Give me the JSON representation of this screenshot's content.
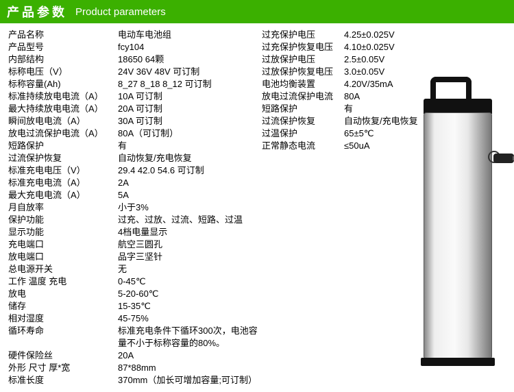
{
  "header": {
    "cn": "产品参数",
    "en": "Product parameters"
  },
  "left": [
    {
      "label": "产品名称",
      "value": "电动车电池组"
    },
    {
      "label": "产品型号",
      "value": "fcy104"
    },
    {
      "label": "内部结构",
      "value": "18650  64颗"
    },
    {
      "label": "标称电压（V）",
      "value": "24V  36V  48V  可订制"
    },
    {
      "label": "标称容量(Ah)",
      "value": "8_27 8_18 8_12 可订制"
    },
    {
      "label": "标准持续放电电流（A）",
      "value": "10A  可订制"
    },
    {
      "label": "最大持续放电电流（A）",
      "value": "20A  可订制"
    },
    {
      "label": "瞬间放电电流（A）",
      "value": "30A  可订制"
    },
    {
      "label": "放电过流保护电流（A）",
      "value": "80A（可订制）"
    },
    {
      "label": "短路保护",
      "value": "有"
    },
    {
      "label": "过流保护恢复",
      "value": "自动恢复/充电恢复"
    },
    {
      "label": "标准充电电压（V）",
      "value": "29.4  42.0  54.6  可订制"
    },
    {
      "label": "标准充电电流（A）",
      "value": "2A"
    },
    {
      "label": "最大充电电流（A）",
      "value": "5A"
    },
    {
      "label": "月自放率",
      "value": "小于3%"
    },
    {
      "label": "保护功能",
      "value": "过充、过放、过流、短路、过温"
    },
    {
      "label": "显示功能",
      "value": "4档电量显示"
    },
    {
      "label": "充电端口",
      "value": "航空三圆孔"
    },
    {
      "label": "放电端口",
      "value": "品字三坚针"
    },
    {
      "label": "总电源开关",
      "value": "无"
    },
    {
      "label": "工作   温度 充电",
      "value": "0-45℃"
    },
    {
      "label": "放电",
      "value": "5-20-60℃"
    },
    {
      "label": "储存",
      "value": "15-35℃"
    },
    {
      "label": "相对湿度",
      "value": "45-75%"
    },
    {
      "label": "循环寿命",
      "value": "标准充电条件下循环300次，电池容量不小于标称容量的80%。"
    },
    {
      "label": "硬件保险丝",
      "value": "20A"
    },
    {
      "label": "外形 尺寸  厚*宽",
      "value": "87*88mm"
    },
    {
      "label": "标准长度",
      "value": "370mm（加长可增加容量;可订制）"
    }
  ],
  "right": [
    {
      "label": "过充保护电压",
      "value": "4.25±0.025V"
    },
    {
      "label": "过充保护恢复电压",
      "value": "4.10±0.025V"
    },
    {
      "label": "过放保护电压",
      "value": "2.5±0.05V"
    },
    {
      "label": "过放保护恢复电压",
      "value": "3.0±0.05V"
    },
    {
      "label": "电池均衡装置",
      "value": "4.20V/35mA"
    },
    {
      "label": "放电过流保护电流",
      "value": "80A"
    },
    {
      "label": "短路保护",
      "value": "有"
    },
    {
      "label": "过流保护恢复",
      "value": "自动恢复/充电恢复"
    },
    {
      "label": "过温保护",
      "value": "65±5℃"
    },
    {
      "label": "正常静态电流",
      "value": "≤50uA"
    }
  ]
}
